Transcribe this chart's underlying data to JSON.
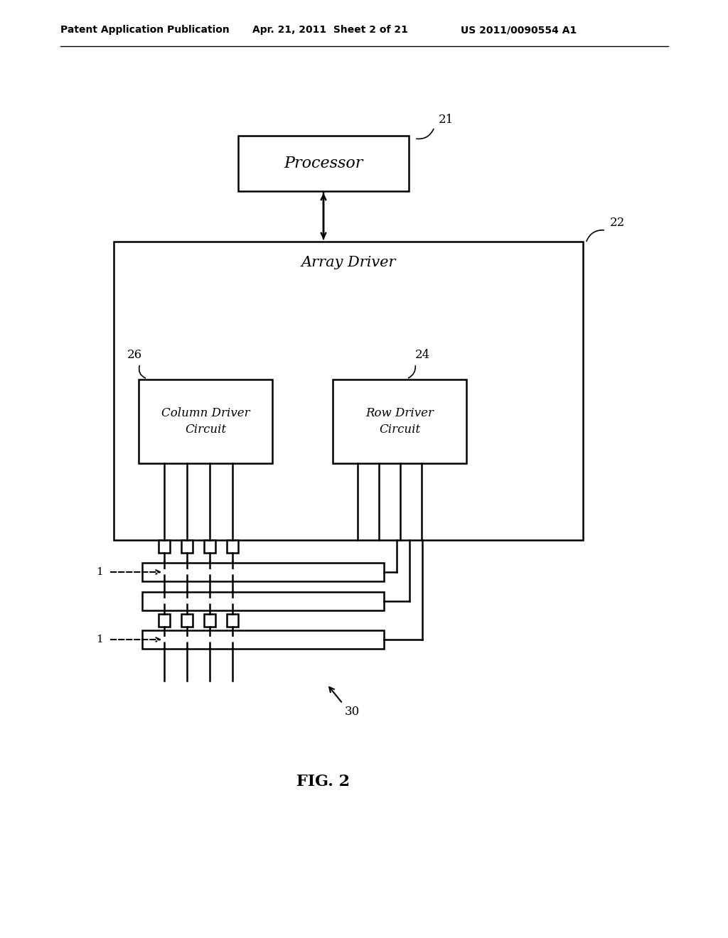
{
  "header_left": "Patent Application Publication",
  "header_mid": "Apr. 21, 2011  Sheet 2 of 21",
  "header_right": "US 2011/0090554 A1",
  "fig_label": "FIG. 2",
  "processor_label": "Processor",
  "processor_ref": "21",
  "array_driver_label": "Array Driver",
  "array_driver_ref": "22",
  "col_driver_label": "Column Driver\nCircuit",
  "col_driver_ref": "26",
  "row_driver_label": "Row Driver\nCircuit",
  "row_driver_ref": "24",
  "display_ref": "30",
  "label_1a": "1",
  "label_1b": "1",
  "bg_color": "#ffffff",
  "line_color": "#000000"
}
